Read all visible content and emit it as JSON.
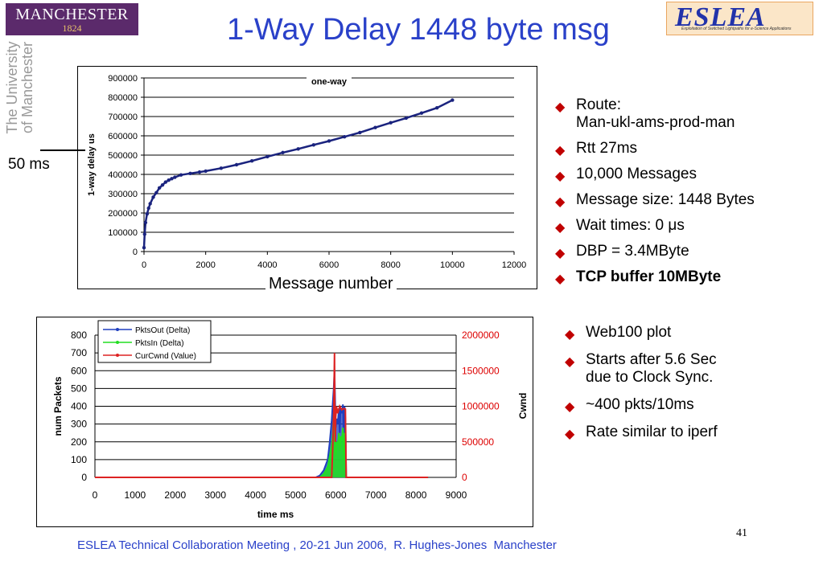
{
  "title": "1-Way Delay 1448 byte msg",
  "logo_left": {
    "line1": "MANCHESTER",
    "line2": "1824",
    "vertical_line1": "The University",
    "vertical_line2": "of Manchester"
  },
  "logo_right": {
    "text": "ESLEA",
    "subtitle": "Exploitation of Switched Lightpaths for e-Science Applications"
  },
  "annotation_50ms": "50 ms",
  "message_number_label": "Message number",
  "bullets_top": [
    {
      "lines": [
        "Route:",
        "Man-ukl-ams-prod-man"
      ],
      "bold": false
    },
    {
      "lines": [
        "Rtt 27ms"
      ],
      "bold": false
    },
    {
      "lines": [
        "10,000 Messages"
      ],
      "bold": false
    },
    {
      "lines": [
        "Message size: 1448 Bytes"
      ],
      "bold": false
    },
    {
      "lines": [
        "Wait times: 0 μs"
      ],
      "bold": false
    },
    {
      "lines": [
        "DBP = 3.4MByte"
      ],
      "bold": false
    },
    {
      "lines": [
        "TCP buffer 10MByte"
      ],
      "bold": true
    }
  ],
  "bullets_bottom": [
    {
      "lines": [
        "Web100 plot"
      ]
    },
    {
      "lines": [
        "Starts after 5.6 Sec",
        "due to Clock Sync."
      ]
    },
    {
      "lines": [
        "~400 pkts/10ms"
      ]
    },
    {
      "lines": [
        "Rate similar to iperf"
      ]
    }
  ],
  "footer": "ESLEA Technical Collaboration Meeting , 20-21 Jun 2006,  R. Hughes-Jones  Manchester",
  "page_number": "41",
  "colors": {
    "title": "#2a41c9",
    "bullet": "#c00000",
    "one_way": "#1a237e",
    "pkts_out": "#1f3fbf",
    "pkts_in": "#22dd22",
    "cwnd": "#dd2222",
    "right_axis": "#dd0000"
  },
  "chart_data": [
    {
      "type": "scatter",
      "title": "one-way",
      "xlabel": "",
      "ylabel": "1-way delay us",
      "xlim": [
        0,
        12000
      ],
      "ylim": [
        0,
        900000
      ],
      "xticks": [
        0,
        2000,
        4000,
        6000,
        8000,
        10000,
        12000
      ],
      "yticks": [
        0,
        100000,
        200000,
        300000,
        400000,
        500000,
        600000,
        700000,
        800000,
        900000
      ],
      "grid": true,
      "series": [
        {
          "name": "",
          "x": [
            0,
            20,
            50,
            100,
            150,
            200,
            300,
            400,
            500,
            600,
            700,
            800,
            900,
            1000,
            1200,
            1500,
            1800,
            2000,
            2500,
            3000,
            3500,
            4000,
            4500,
            5000,
            5500,
            6000,
            6500,
            7000,
            7500,
            8000,
            8500,
            9000,
            9500,
            10000
          ],
          "y": [
            20000,
            90000,
            150000,
            195000,
            225000,
            248000,
            282000,
            305000,
            330000,
            345000,
            360000,
            370000,
            378000,
            385000,
            397000,
            405000,
            412000,
            417000,
            432000,
            450000,
            470000,
            492000,
            513000,
            532000,
            553000,
            573000,
            595000,
            617000,
            643000,
            668000,
            692000,
            718000,
            745000,
            785000
          ]
        }
      ]
    },
    {
      "type": "line",
      "title": "",
      "xlabel": "time ms",
      "ylabel": "num Packets",
      "y2label": "Cwnd",
      "xlim": [
        0,
        9000
      ],
      "ylim": [
        0,
        800
      ],
      "y2lim": [
        0,
        2000000
      ],
      "xticks": [
        0,
        1000,
        2000,
        3000,
        4000,
        5000,
        6000,
        7000,
        8000,
        9000
      ],
      "yticks": [
        0,
        100,
        200,
        300,
        400,
        500,
        600,
        700,
        800
      ],
      "y2ticks": [
        0,
        500000,
        1000000,
        1500000,
        2000000
      ],
      "grid": true,
      "legend_position": "top-left",
      "series": [
        {
          "name": "PktsOut (Delta)",
          "axis": "left",
          "x": [
            0,
            5500,
            5600,
            5700,
            5800,
            5850,
            5900,
            5930,
            5950,
            5970,
            5990,
            6000,
            6020,
            6050,
            6080,
            6100,
            6120,
            6150,
            6180,
            6200,
            6220,
            6240,
            6250,
            6260,
            6300,
            8300
          ],
          "y": [
            0,
            0,
            10,
            40,
            100,
            200,
            320,
            430,
            500,
            600,
            380,
            280,
            330,
            300,
            390,
            250,
            390,
            360,
            410,
            180,
            400,
            330,
            180,
            0,
            0,
            0
          ]
        },
        {
          "name": "PktsIn (Delta)",
          "axis": "left",
          "x": [
            0,
            5600,
            5700,
            5800,
            5850,
            5900,
            5930,
            5950,
            5970,
            5990,
            6000,
            6020,
            6050,
            6080,
            6100,
            6120,
            6150,
            6180,
            6200,
            6220,
            6240,
            6250,
            6260,
            6300,
            8300
          ],
          "y": [
            0,
            0,
            20,
            60,
            120,
            180,
            250,
            350,
            420,
            150,
            120,
            200,
            180,
            250,
            150,
            230,
            210,
            280,
            100,
            250,
            200,
            100,
            0,
            0,
            0
          ]
        },
        {
          "name": "CurCwnd (Value)",
          "axis": "right",
          "x": [
            0,
            5900,
            5930,
            5950,
            5960,
            5970,
            5975,
            5990,
            6000,
            6020,
            6050,
            6100,
            6150,
            6200,
            6240,
            6250,
            6260,
            8300
          ],
          "y": [
            0,
            0,
            500000,
            900000,
            1300000,
            1750000,
            1050000,
            500000,
            850000,
            1000000,
            900000,
            1000000,
            950000,
            970000,
            960000,
            500000,
            0,
            0
          ]
        }
      ]
    }
  ]
}
